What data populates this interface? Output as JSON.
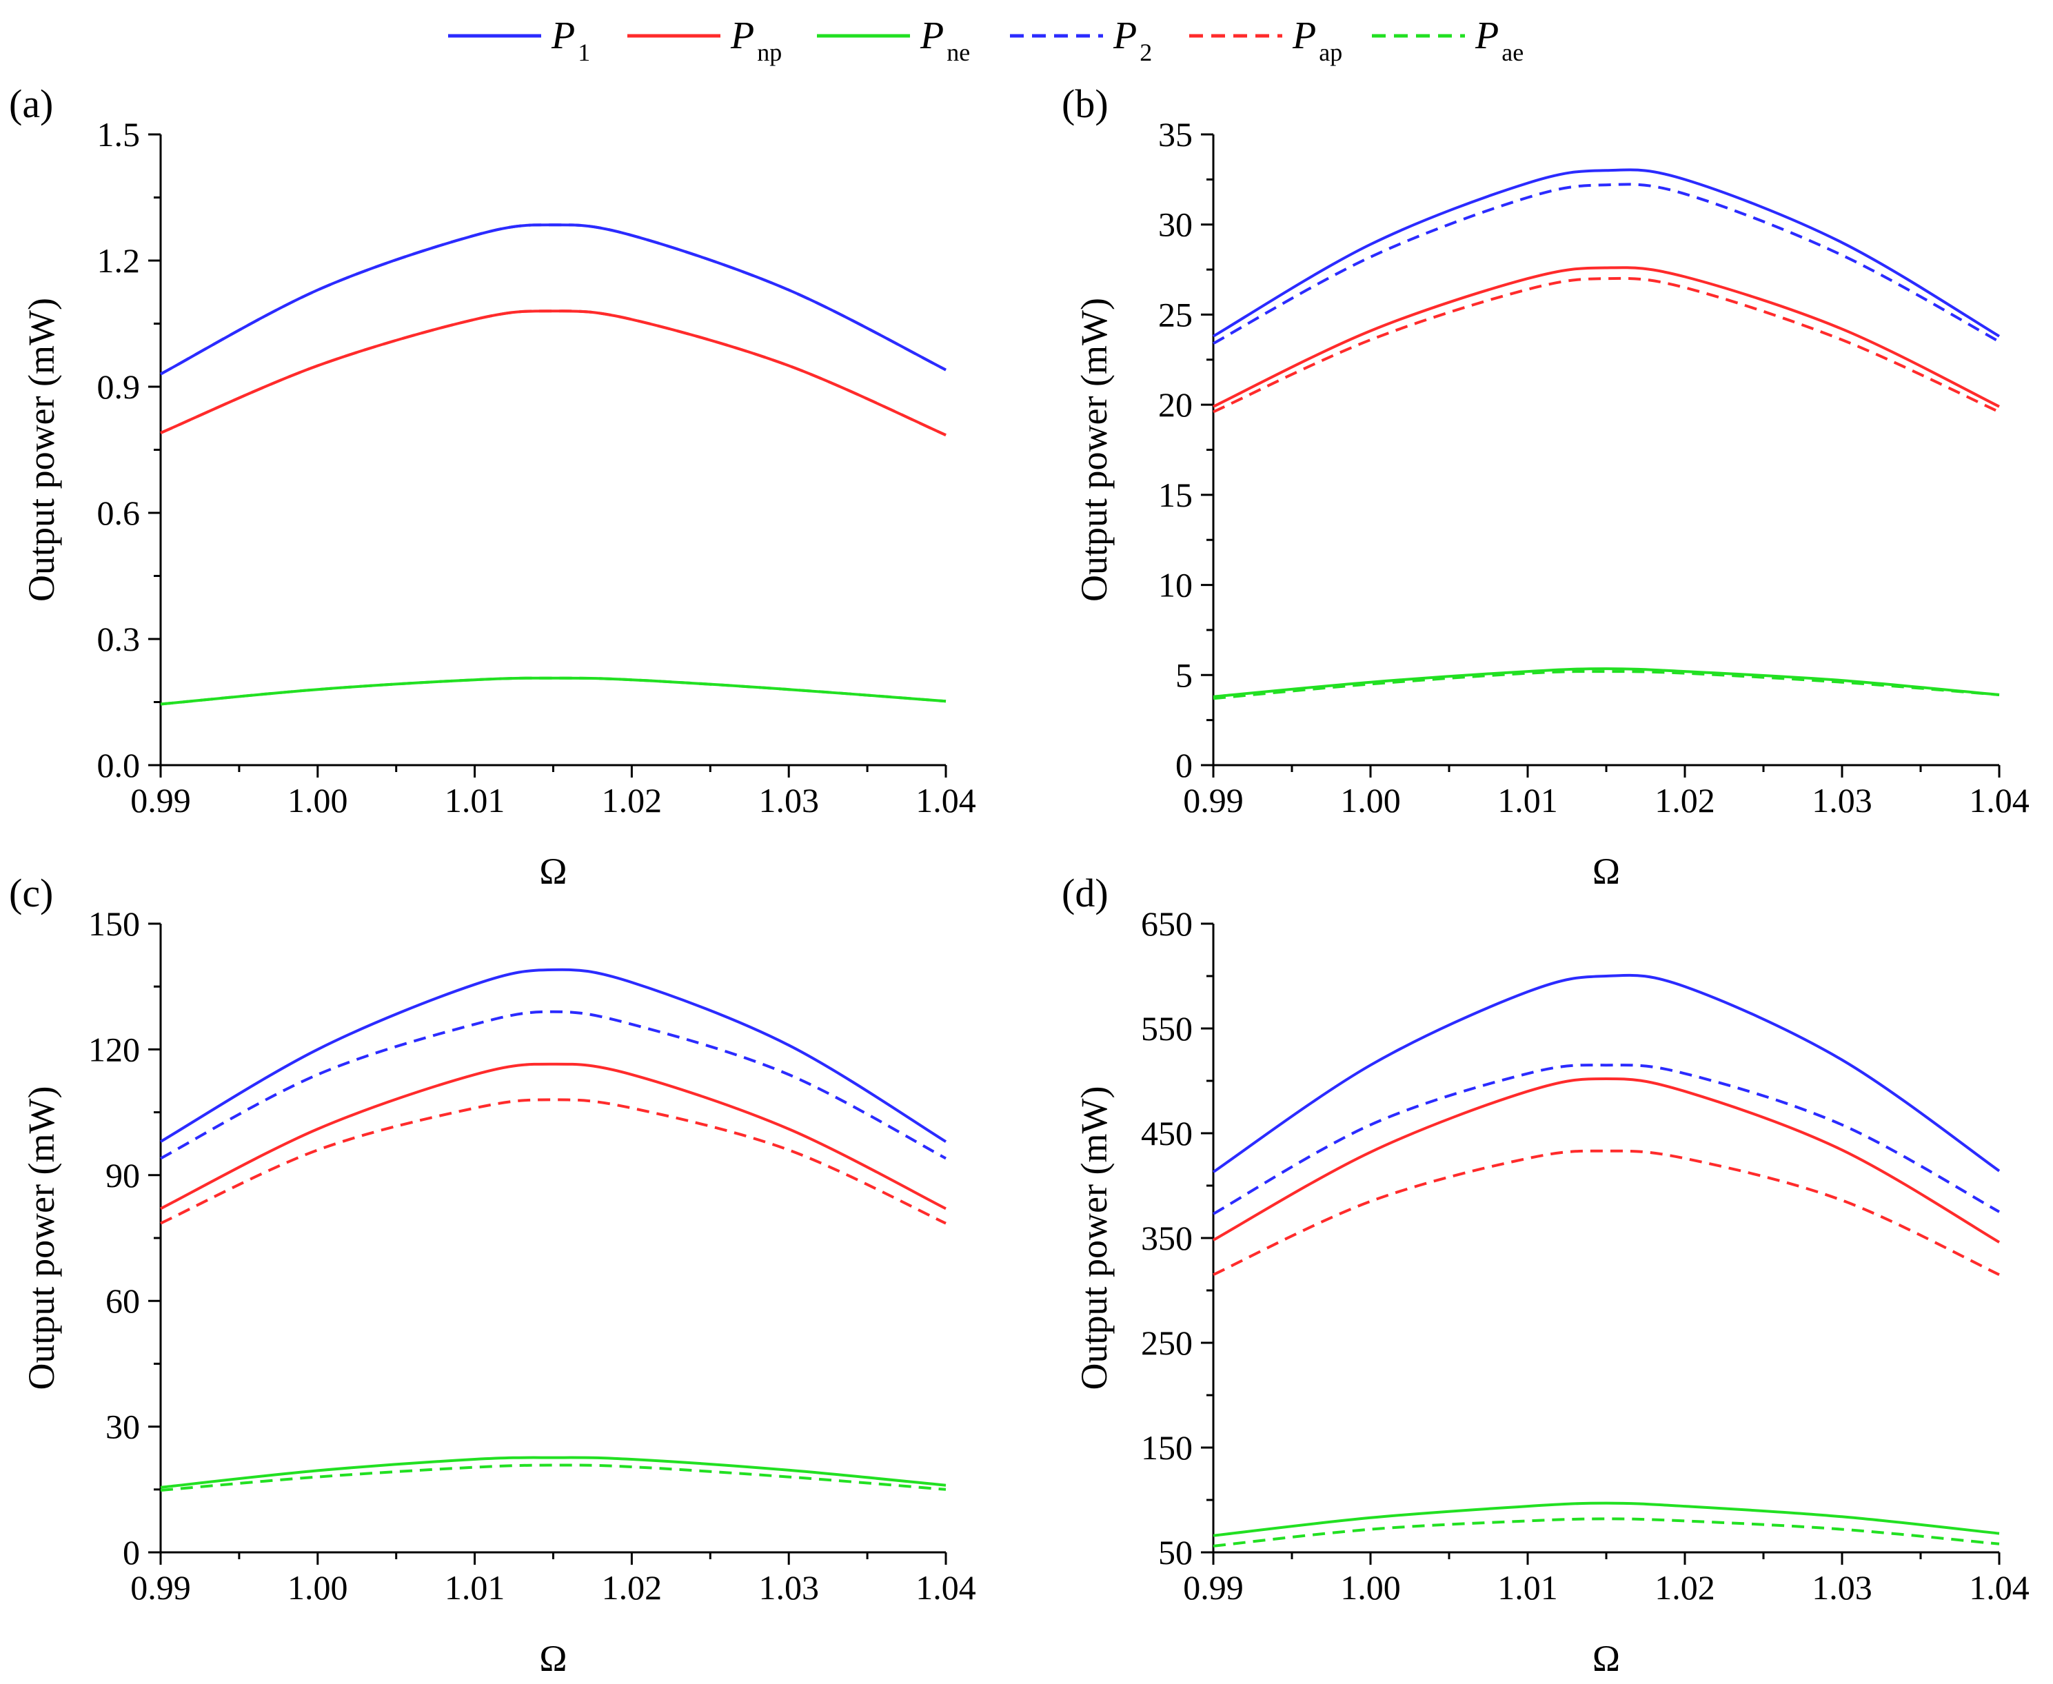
{
  "legend": [
    {
      "main": "P",
      "sub": "1",
      "color": "#2b2bff",
      "dash": false
    },
    {
      "main": "P",
      "sub": "np",
      "color": "#ff2b2b",
      "dash": false
    },
    {
      "main": "P",
      "sub": "ne",
      "color": "#22e022",
      "dash": false
    },
    {
      "main": "P",
      "sub": "2",
      "color": "#2b2bff",
      "dash": true
    },
    {
      "main": "P",
      "sub": "ap",
      "color": "#ff2b2b",
      "dash": true
    },
    {
      "main": "P",
      "sub": "ae",
      "color": "#22e022",
      "dash": true
    }
  ],
  "chart_data": [
    {
      "type": "line",
      "panel": "(a)",
      "xlabel": "Ω",
      "ylabel": "Output power (mW)",
      "xlim": [
        0.99,
        1.04
      ],
      "ylim": [
        0.0,
        1.5
      ],
      "xticks": [
        "0.99",
        "1.00",
        "1.01",
        "1.02",
        "1.03",
        "1.04"
      ],
      "yticks": [
        "0.0",
        "0.3",
        "0.6",
        "0.9",
        "1.2",
        "1.5"
      ],
      "x": [
        0.99,
        1.0,
        1.01,
        1.015,
        1.02,
        1.03,
        1.04
      ],
      "series": [
        {
          "name": "P1",
          "values": [
            0.93,
            1.13,
            1.26,
            1.285,
            1.26,
            1.13,
            0.94
          ]
        },
        {
          "name": "Pnp",
          "values": [
            0.79,
            0.95,
            1.06,
            1.08,
            1.06,
            0.95,
            0.785
          ]
        },
        {
          "name": "Pne",
          "values": [
            0.145,
            0.18,
            0.203,
            0.207,
            0.203,
            0.18,
            0.152
          ]
        },
        {
          "name": "P2",
          "values": [
            0.93,
            1.13,
            1.26,
            1.285,
            1.26,
            1.13,
            0.94
          ]
        },
        {
          "name": "Pap",
          "values": [
            0.79,
            0.95,
            1.06,
            1.08,
            1.06,
            0.95,
            0.785
          ]
        },
        {
          "name": "Pae",
          "values": [
            0.145,
            0.18,
            0.203,
            0.207,
            0.203,
            0.18,
            0.152
          ]
        }
      ]
    },
    {
      "type": "line",
      "panel": "(b)",
      "xlabel": "Ω",
      "ylabel": "Output power (mW)",
      "xlim": [
        0.99,
        1.04
      ],
      "ylim": [
        0,
        35
      ],
      "xticks": [
        "0.99",
        "1.00",
        "1.01",
        "1.02",
        "1.03",
        "1.04"
      ],
      "yticks": [
        "0",
        "5",
        "10",
        "15",
        "20",
        "25",
        "30",
        "35"
      ],
      "x": [
        0.99,
        1.0,
        1.01,
        1.015,
        1.02,
        1.03,
        1.04
      ],
      "series": [
        {
          "name": "P1",
          "values": [
            23.8,
            28.9,
            32.3,
            33.0,
            32.5,
            29.0,
            23.8
          ]
        },
        {
          "name": "Pnp",
          "values": [
            19.9,
            24.1,
            27.0,
            27.6,
            27.1,
            24.2,
            19.9
          ]
        },
        {
          "name": "Pne",
          "values": [
            3.8,
            4.6,
            5.2,
            5.35,
            5.2,
            4.7,
            3.9
          ]
        },
        {
          "name": "P2",
          "values": [
            23.4,
            28.2,
            31.5,
            32.2,
            31.7,
            28.3,
            23.5
          ]
        },
        {
          "name": "Pap",
          "values": [
            19.6,
            23.6,
            26.4,
            27.0,
            26.5,
            23.6,
            19.6
          ]
        },
        {
          "name": "Pae",
          "values": [
            3.7,
            4.5,
            5.1,
            5.2,
            5.1,
            4.6,
            3.9
          ]
        }
      ]
    },
    {
      "type": "line",
      "panel": "(c)",
      "xlabel": "Ω",
      "ylabel": "Output power (mW)",
      "xlim": [
        0.99,
        1.04
      ],
      "ylim": [
        0,
        150
      ],
      "xticks": [
        "0.99",
        "1.00",
        "1.01",
        "1.02",
        "1.03",
        "1.04"
      ],
      "yticks": [
        "0",
        "30",
        "60",
        "90",
        "120",
        "150"
      ],
      "x": [
        0.99,
        1.0,
        1.01,
        1.015,
        1.02,
        1.03,
        1.04
      ],
      "series": [
        {
          "name": "P1",
          "values": [
            98,
            120,
            135.5,
            139,
            136,
            121,
            98
          ]
        },
        {
          "name": "Pnp",
          "values": [
            82,
            101,
            114,
            116.5,
            114,
            101,
            82
          ]
        },
        {
          "name": "Pne",
          "values": [
            15.5,
            19.5,
            22.2,
            22.6,
            22.2,
            19.6,
            16
          ]
        },
        {
          "name": "P2",
          "values": [
            94,
            114,
            126,
            129,
            126,
            114,
            94
          ]
        },
        {
          "name": "Pap",
          "values": [
            78.5,
            96,
            106,
            108,
            106,
            96,
            78.5
          ]
        },
        {
          "name": "Pae",
          "values": [
            14.8,
            18,
            20.3,
            20.8,
            20.4,
            18,
            15
          ]
        }
      ]
    },
    {
      "type": "line",
      "panel": "(d)",
      "xlabel": "Ω",
      "ylabel": "Output power (mW)",
      "xlim": [
        0.99,
        1.04
      ],
      "ylim": [
        50,
        650
      ],
      "xticks": [
        "0.99",
        "1.00",
        "1.01",
        "1.02",
        "1.03",
        "1.04"
      ],
      "yticks": [
        "50",
        "150",
        "250",
        "350",
        "450",
        "550",
        "650"
      ],
      "x": [
        0.99,
        1.0,
        1.01,
        1.015,
        1.02,
        1.03,
        1.04
      ],
      "series": [
        {
          "name": "P1",
          "values": [
            413,
            515,
            585,
            600,
            590,
            520,
            414
          ]
        },
        {
          "name": "Pnp",
          "values": [
            348,
            432,
            490,
            502,
            490,
            434,
            346
          ]
        },
        {
          "name": "Pne",
          "values": [
            66,
            83,
            94,
            97,
            94,
            84,
            68
          ]
        },
        {
          "name": "P2",
          "values": [
            373,
            458,
            507,
            515,
            507,
            458,
            375
          ]
        },
        {
          "name": "Pap",
          "values": [
            315,
            385,
            426,
            433,
            426,
            386,
            315
          ]
        },
        {
          "name": "Pae",
          "values": [
            56,
            72,
            80,
            82,
            80,
            72,
            58
          ]
        }
      ]
    }
  ]
}
